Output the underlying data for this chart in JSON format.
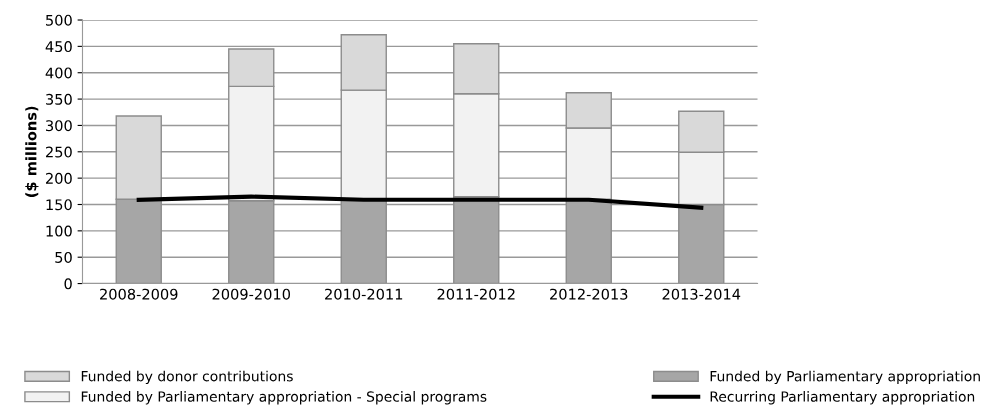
{
  "chart_data": {
    "type": "bar",
    "stacked": true,
    "ylabel": "($ millions)",
    "categories": [
      "2008-2009",
      "2009-2010",
      "2010-2011",
      "2011-2012",
      "2012-2013",
      "2013-2014"
    ],
    "series": [
      {
        "name": "Funded by Parliamentary appropriation",
        "color": "#a6a6a6",
        "values": [
          160,
          157,
          160,
          165,
          160,
          150
        ]
      },
      {
        "name": "Funded by Parliamentary appropriation - Special programs",
        "color": "#f2f2f2",
        "values": [
          0,
          217,
          207,
          195,
          135,
          99
        ]
      },
      {
        "name": "Funded by donor contributions",
        "color": "#d9d9d9",
        "values": [
          158,
          71,
          105,
          95,
          67,
          78
        ]
      },
      {
        "name": "Recurring Parliamentary appropriation",
        "type": "line",
        "color": "#000000",
        "values": [
          159,
          165,
          159,
          159,
          159,
          144
        ]
      }
    ],
    "ylim": [
      0,
      500
    ],
    "yticks": [
      0,
      50,
      100,
      150,
      200,
      250,
      300,
      350,
      400,
      450,
      500
    ],
    "grid": "y",
    "legend": "bottom",
    "marker": "none",
    "line_style": "solid"
  }
}
